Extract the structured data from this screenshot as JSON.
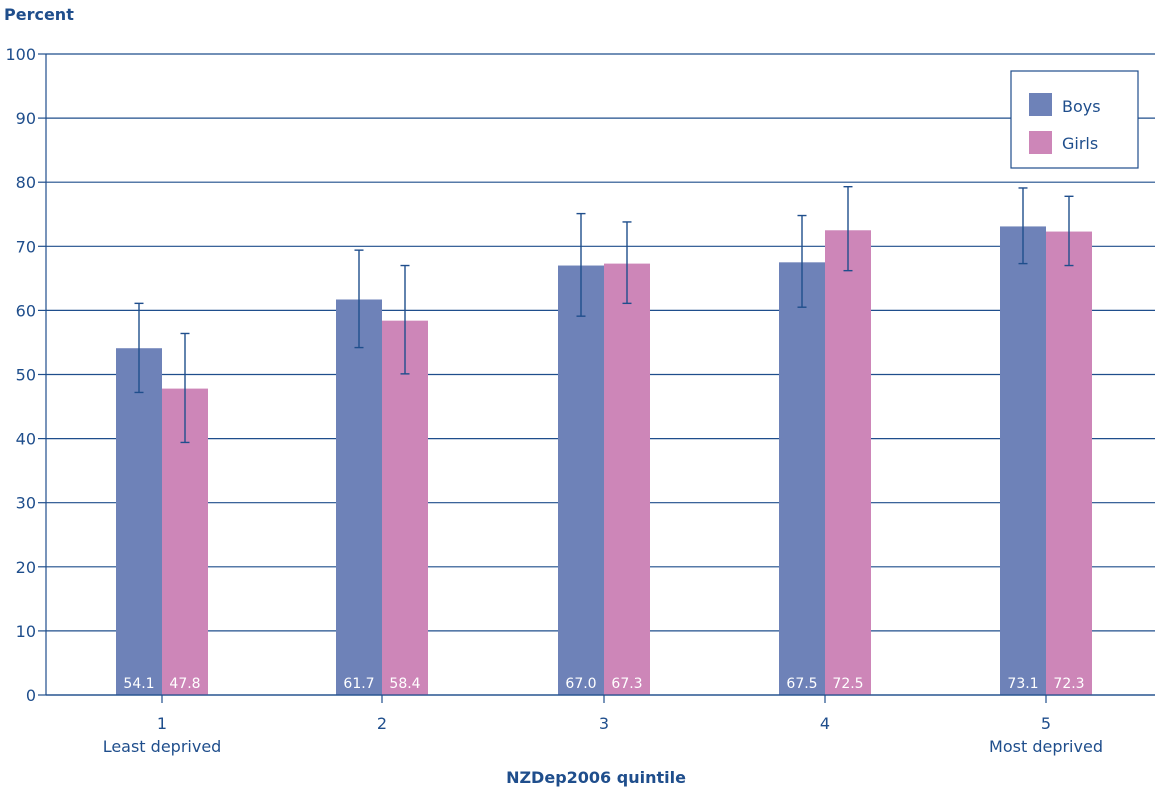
{
  "chart_data": {
    "type": "bar",
    "title": "",
    "ylabel": "Percent",
    "xlabel": "NZDep2006 quintile",
    "ylim": [
      0,
      100
    ],
    "yticks": [
      0,
      10,
      20,
      30,
      40,
      50,
      60,
      70,
      80,
      90,
      100
    ],
    "grid": true,
    "legend_position": "top-right",
    "categories": [
      "1",
      "2",
      "3",
      "4",
      "5"
    ],
    "category_sublabels": [
      "Least deprived",
      "",
      "",
      "",
      "Most deprived"
    ],
    "series": [
      {
        "name": "Boys",
        "color": "#6e82b8",
        "values": [
          54.1,
          61.7,
          67.0,
          67.5,
          73.1
        ],
        "value_labels": [
          "54.1",
          "61.7",
          "67.0",
          "67.5",
          "73.1"
        ],
        "ci_low": [
          47.2,
          54.2,
          59.1,
          60.5,
          67.3
        ],
        "ci_high": [
          61.1,
          69.4,
          75.1,
          74.8,
          79.1
        ]
      },
      {
        "name": "Girls",
        "color": "#cd86b8",
        "values": [
          47.8,
          58.4,
          67.3,
          72.5,
          72.3
        ],
        "value_labels": [
          "47.8",
          "58.4",
          "67.3",
          "72.5",
          "72.3"
        ],
        "ci_low": [
          39.4,
          50.1,
          61.1,
          66.2,
          67.0
        ],
        "ci_high": [
          56.4,
          67.0,
          73.8,
          79.3,
          77.8
        ]
      }
    ]
  }
}
